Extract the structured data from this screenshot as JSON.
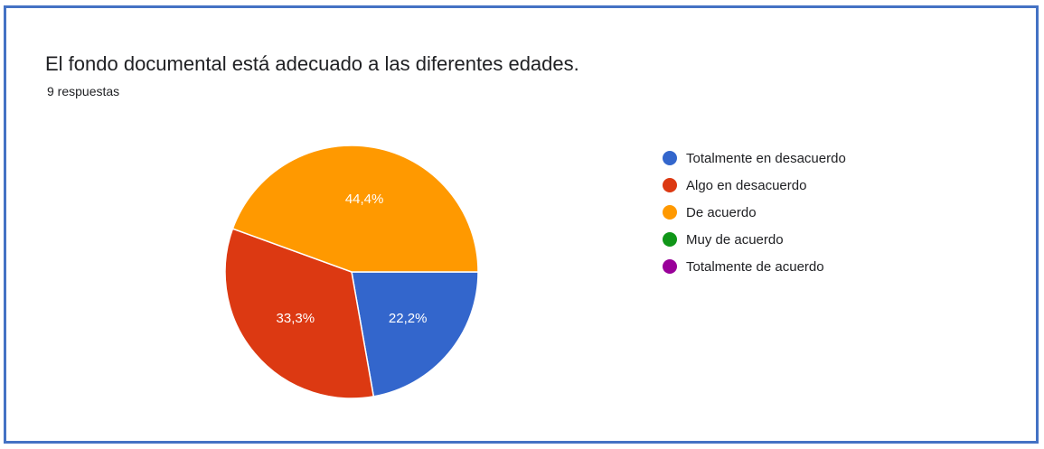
{
  "chart_data": {
    "type": "pie",
    "title": "El fondo documental está adecuado a las diferentes edades.",
    "subtitle": "9 respuestas",
    "legend_position": "right",
    "slices": [
      {
        "label": "Totalmente en desacuerdo",
        "value": 22.2,
        "display": "22,2%",
        "color": "#3366cc"
      },
      {
        "label": "Algo en desacuerdo",
        "value": 33.3,
        "display": "33,3%",
        "color": "#dc3912"
      },
      {
        "label": "De acuerdo",
        "value": 44.4,
        "display": "44,4%",
        "color": "#ff9900"
      },
      {
        "label": "Muy de acuerdo",
        "value": 0,
        "display": "",
        "color": "#109618"
      },
      {
        "label": "Totalmente de acuerdo",
        "value": 0,
        "display": "",
        "color": "#990099"
      }
    ]
  }
}
